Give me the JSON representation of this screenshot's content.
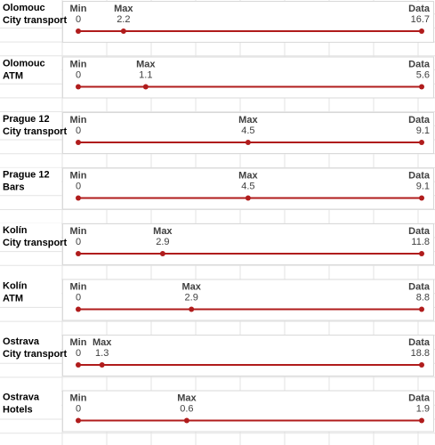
{
  "chart_data": [
    {
      "type": "range",
      "title": [
        "Olomouc",
        "City transport"
      ],
      "labels": [
        "Min",
        "Max",
        "Data"
      ],
      "values": [
        0,
        2.2,
        16.7
      ],
      "color": "#b01c1c"
    },
    {
      "type": "range",
      "title": [
        "Olomouc",
        "ATM"
      ],
      "labels": [
        "Min",
        "Max",
        "Data"
      ],
      "values": [
        0,
        1.1,
        5.6
      ],
      "color": "#b01c1c"
    },
    {
      "type": "range",
      "title": [
        "Prague 12",
        "City transport"
      ],
      "labels": [
        "Min",
        "Max",
        "Data"
      ],
      "values": [
        0,
        4.5,
        9.1
      ],
      "color": "#b01c1c"
    },
    {
      "type": "range",
      "title": [
        "Prague 12",
        "Bars"
      ],
      "labels": [
        "Min",
        "Max",
        "Data"
      ],
      "values": [
        0,
        4.5,
        9.1
      ],
      "color": "#b01c1c"
    },
    {
      "type": "range",
      "title": [
        "Kolín",
        "City transport"
      ],
      "labels": [
        "Min",
        "Max",
        "Data"
      ],
      "values": [
        0,
        2.9,
        11.8
      ],
      "color": "#b01c1c"
    },
    {
      "type": "range",
      "title": [
        "Kolín",
        "ATM"
      ],
      "labels": [
        "Min",
        "Max",
        "Data"
      ],
      "values": [
        0,
        2.9,
        8.8
      ],
      "color": "#b01c1c"
    },
    {
      "type": "range",
      "title": [
        "Ostrava",
        "City transport"
      ],
      "labels": [
        "Min",
        "Max",
        "Data"
      ],
      "values": [
        0,
        1.3,
        18.8
      ],
      "color": "#b01c1c"
    },
    {
      "type": "range",
      "title": [
        "Ostrava",
        "Hotels"
      ],
      "labels": [
        "Min",
        "Max",
        "Data"
      ],
      "values": [
        0,
        0.6,
        1.9
      ],
      "color": "#b01c1c"
    }
  ]
}
